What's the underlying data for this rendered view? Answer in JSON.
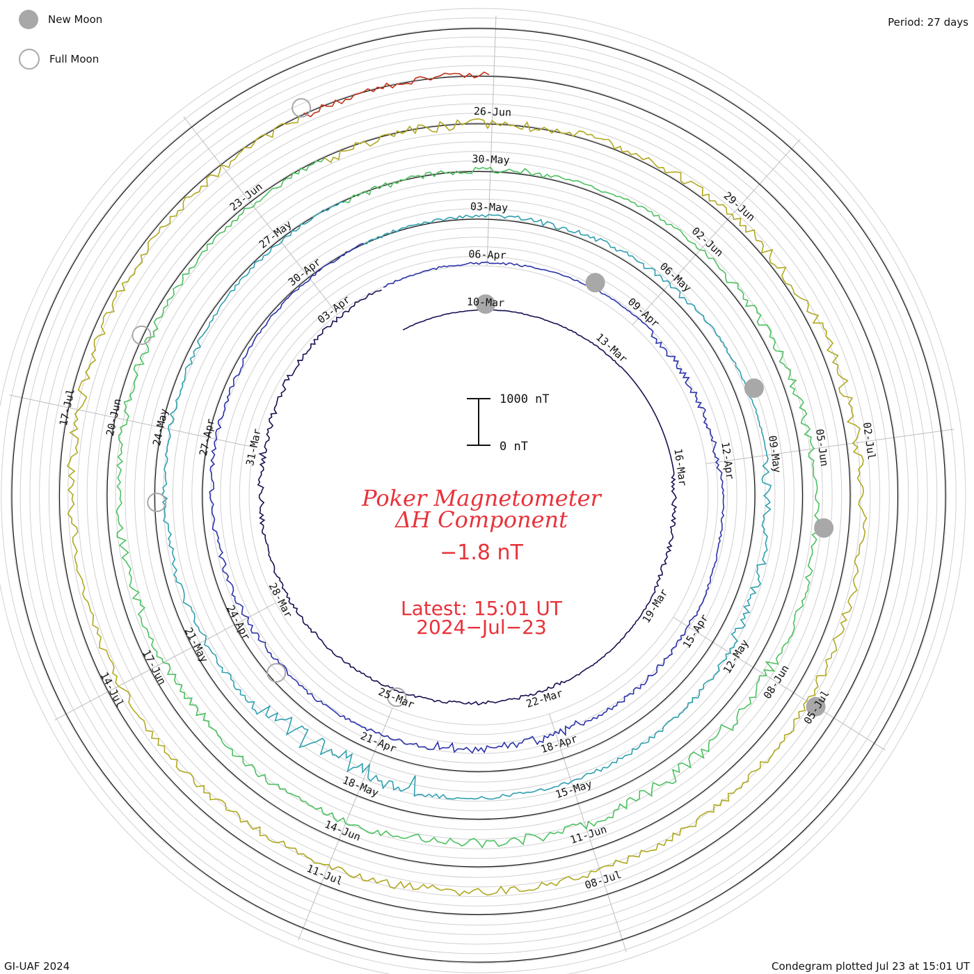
{
  "legend": {
    "new_moon": "New Moon",
    "full_moon": "Full Moon"
  },
  "period_label": "Period: 27 days",
  "footer_left": "GI-UAF 2024",
  "footer_right": "Condegram plotted Jul 23 at 15:01 UT",
  "colors": {
    "title": "#e8323a",
    "moon": "#a8a8a8",
    "grid": "#c8c8c8"
  },
  "chart_data": {
    "type": "line",
    "title": "Poker Magnetometer",
    "subtitle": "ΔH Component",
    "current_value": "−1.8 nT",
    "latest_time": "Latest: 15:01 UT",
    "latest_date": "2024−Jul−23",
    "scale_bar": {
      "top_label": "1000 nT",
      "bottom_label": "0 nT"
    },
    "period_days": 27,
    "start_date": "2024-03-08",
    "end_date": "2024-07-23",
    "tick_interval_days": 3,
    "series": [
      {
        "cycle": 1,
        "color": "#141050",
        "wave": [
          5,
          10,
          0,
          40,
          10,
          30,
          20,
          30,
          60,
          40
        ]
      },
      {
        "cycle": 2,
        "color": "#2a32a8",
        "wave": [
          20,
          10,
          60,
          20,
          40,
          80,
          30,
          50,
          40,
          20
        ]
      },
      {
        "cycle": 3,
        "color": "#2f9fb0",
        "wave": [
          30,
          50,
          20,
          80,
          40,
          40,
          200,
          60,
          50,
          30
        ]
      },
      {
        "cycle": 4,
        "color": "#4cc060",
        "wave": [
          60,
          40,
          80,
          50,
          120,
          90,
          60,
          90,
          70,
          50
        ]
      },
      {
        "cycle": 5,
        "color": "#b0a820",
        "wave": [
          90,
          70,
          100,
          80,
          60,
          80,
          70,
          60,
          90,
          70
        ]
      },
      {
        "cycle": 6,
        "color": "#c03018",
        "wave": [
          60,
          80,
          50,
          90,
          70,
          60,
          80,
          50,
          70,
          60
        ]
      }
    ],
    "tick_labels": [
      "10-Mar",
      "13-Mar",
      "16-Mar",
      "19-Mar",
      "22-Mar",
      "25-Mar",
      "28-Mar",
      "31-Mar",
      "03-Apr",
      "06-Apr",
      "09-Apr",
      "12-Apr",
      "15-Apr",
      "18-Apr",
      "21-Apr",
      "24-Apr",
      "27-Apr",
      "30-Apr",
      "03-May",
      "06-May",
      "09-May",
      "12-May",
      "15-May",
      "18-May",
      "21-May",
      "24-May",
      "27-May",
      "30-May",
      "02-Jun",
      "05-Jun",
      "08-Jun",
      "11-Jun",
      "14-Jun",
      "17-Jun",
      "20-Jun",
      "23-Jun",
      "26-Jun",
      "29-Jun",
      "02-Jul",
      "05-Jul",
      "08-Jul",
      "11-Jul",
      "14-Jul",
      "17-Jul"
    ],
    "new_moons": [
      "2024-03-10",
      "2024-04-08",
      "2024-05-08",
      "2024-06-06",
      "2024-07-05"
    ],
    "full_moons": [
      "2024-03-25",
      "2024-04-23",
      "2024-05-23",
      "2024-06-21",
      "2024-07-21"
    ]
  }
}
